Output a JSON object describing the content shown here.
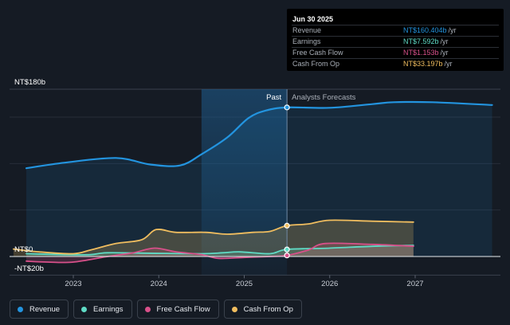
{
  "chart_data": {
    "type": "line",
    "y_axis": {
      "max_label": "NT$180b",
      "zero_label": "NT$0",
      "min_label": "-NT$20b",
      "ylim": [
        -20,
        180
      ]
    },
    "x_ticks": [
      "2023",
      "2024",
      "2025",
      "2026",
      "2027"
    ],
    "past_label": "Past",
    "forecast_label": "Analysts Forecasts",
    "series": [
      {
        "name": "Revenue",
        "color": "#2394df",
        "points": [
          [
            2022.45,
            95
          ],
          [
            2022.9,
            101
          ],
          [
            2023.5,
            106
          ],
          [
            2023.9,
            99
          ],
          [
            2024.25,
            98
          ],
          [
            2024.5,
            110
          ],
          [
            2024.8,
            128
          ],
          [
            2025.05,
            149
          ],
          [
            2025.25,
            157
          ],
          [
            2025.5,
            160.4
          ],
          [
            2026.0,
            160
          ],
          [
            2026.5,
            164
          ],
          [
            2026.75,
            166
          ],
          [
            2027.2,
            166
          ],
          [
            2027.9,
            163
          ]
        ]
      },
      {
        "name": "Earnings",
        "color": "#5fdbc5",
        "points": [
          [
            2022.45,
            3
          ],
          [
            2022.9,
            2
          ],
          [
            2023.2,
            2
          ],
          [
            2023.4,
            4
          ],
          [
            2023.9,
            3.5
          ],
          [
            2024.5,
            3
          ],
          [
            2024.75,
            4
          ],
          [
            2024.95,
            5
          ],
          [
            2025.3,
            3
          ],
          [
            2025.5,
            7.592
          ],
          [
            2026.0,
            9
          ],
          [
            2026.5,
            11
          ],
          [
            2026.98,
            12
          ]
        ]
      },
      {
        "name": "Free Cash Flow",
        "color": "#d8508a",
        "points": [
          [
            2022.45,
            -5
          ],
          [
            2022.7,
            -6
          ],
          [
            2023.0,
            -6
          ],
          [
            2023.4,
            0
          ],
          [
            2023.7,
            4
          ],
          [
            2023.95,
            9
          ],
          [
            2024.2,
            5
          ],
          [
            2024.5,
            2
          ],
          [
            2024.7,
            -2
          ],
          [
            2025.0,
            -1
          ],
          [
            2025.3,
            0
          ],
          [
            2025.5,
            1.153
          ],
          [
            2025.75,
            7
          ],
          [
            2025.95,
            14
          ],
          [
            2026.5,
            13
          ],
          [
            2026.98,
            11
          ]
        ]
      },
      {
        "name": "Cash From Op",
        "color": "#f0bd5f",
        "points": [
          [
            2022.3,
            8
          ],
          [
            2022.6,
            5
          ],
          [
            2023.0,
            3
          ],
          [
            2023.2,
            7
          ],
          [
            2023.5,
            14
          ],
          [
            2023.8,
            18
          ],
          [
            2023.97,
            29
          ],
          [
            2024.2,
            26
          ],
          [
            2024.55,
            26
          ],
          [
            2024.8,
            24
          ],
          [
            2025.1,
            26
          ],
          [
            2025.3,
            27
          ],
          [
            2025.5,
            33.197
          ],
          [
            2025.75,
            35
          ],
          [
            2026.0,
            39
          ],
          [
            2026.5,
            38
          ],
          [
            2026.98,
            37
          ]
        ]
      }
    ]
  },
  "tooltip": {
    "date": "Jun 30 2025",
    "rows": [
      {
        "label": "Revenue",
        "value": "NT$160.404b",
        "unit": "/yr",
        "color": "#2394df"
      },
      {
        "label": "Earnings",
        "value": "NT$7.592b",
        "unit": "/yr",
        "color": "#5fdbc5"
      },
      {
        "label": "Free Cash Flow",
        "value": "NT$1.153b",
        "unit": "/yr",
        "color": "#d8508a"
      },
      {
        "label": "Cash From Op",
        "value": "NT$33.197b",
        "unit": "/yr",
        "color": "#f0bd5f"
      }
    ]
  },
  "legend": [
    {
      "label": "Revenue",
      "color": "#2394df"
    },
    {
      "label": "Earnings",
      "color": "#5fdbc5"
    },
    {
      "label": "Free Cash Flow",
      "color": "#d8508a"
    },
    {
      "label": "Cash From Op",
      "color": "#f0bd5f"
    }
  ]
}
